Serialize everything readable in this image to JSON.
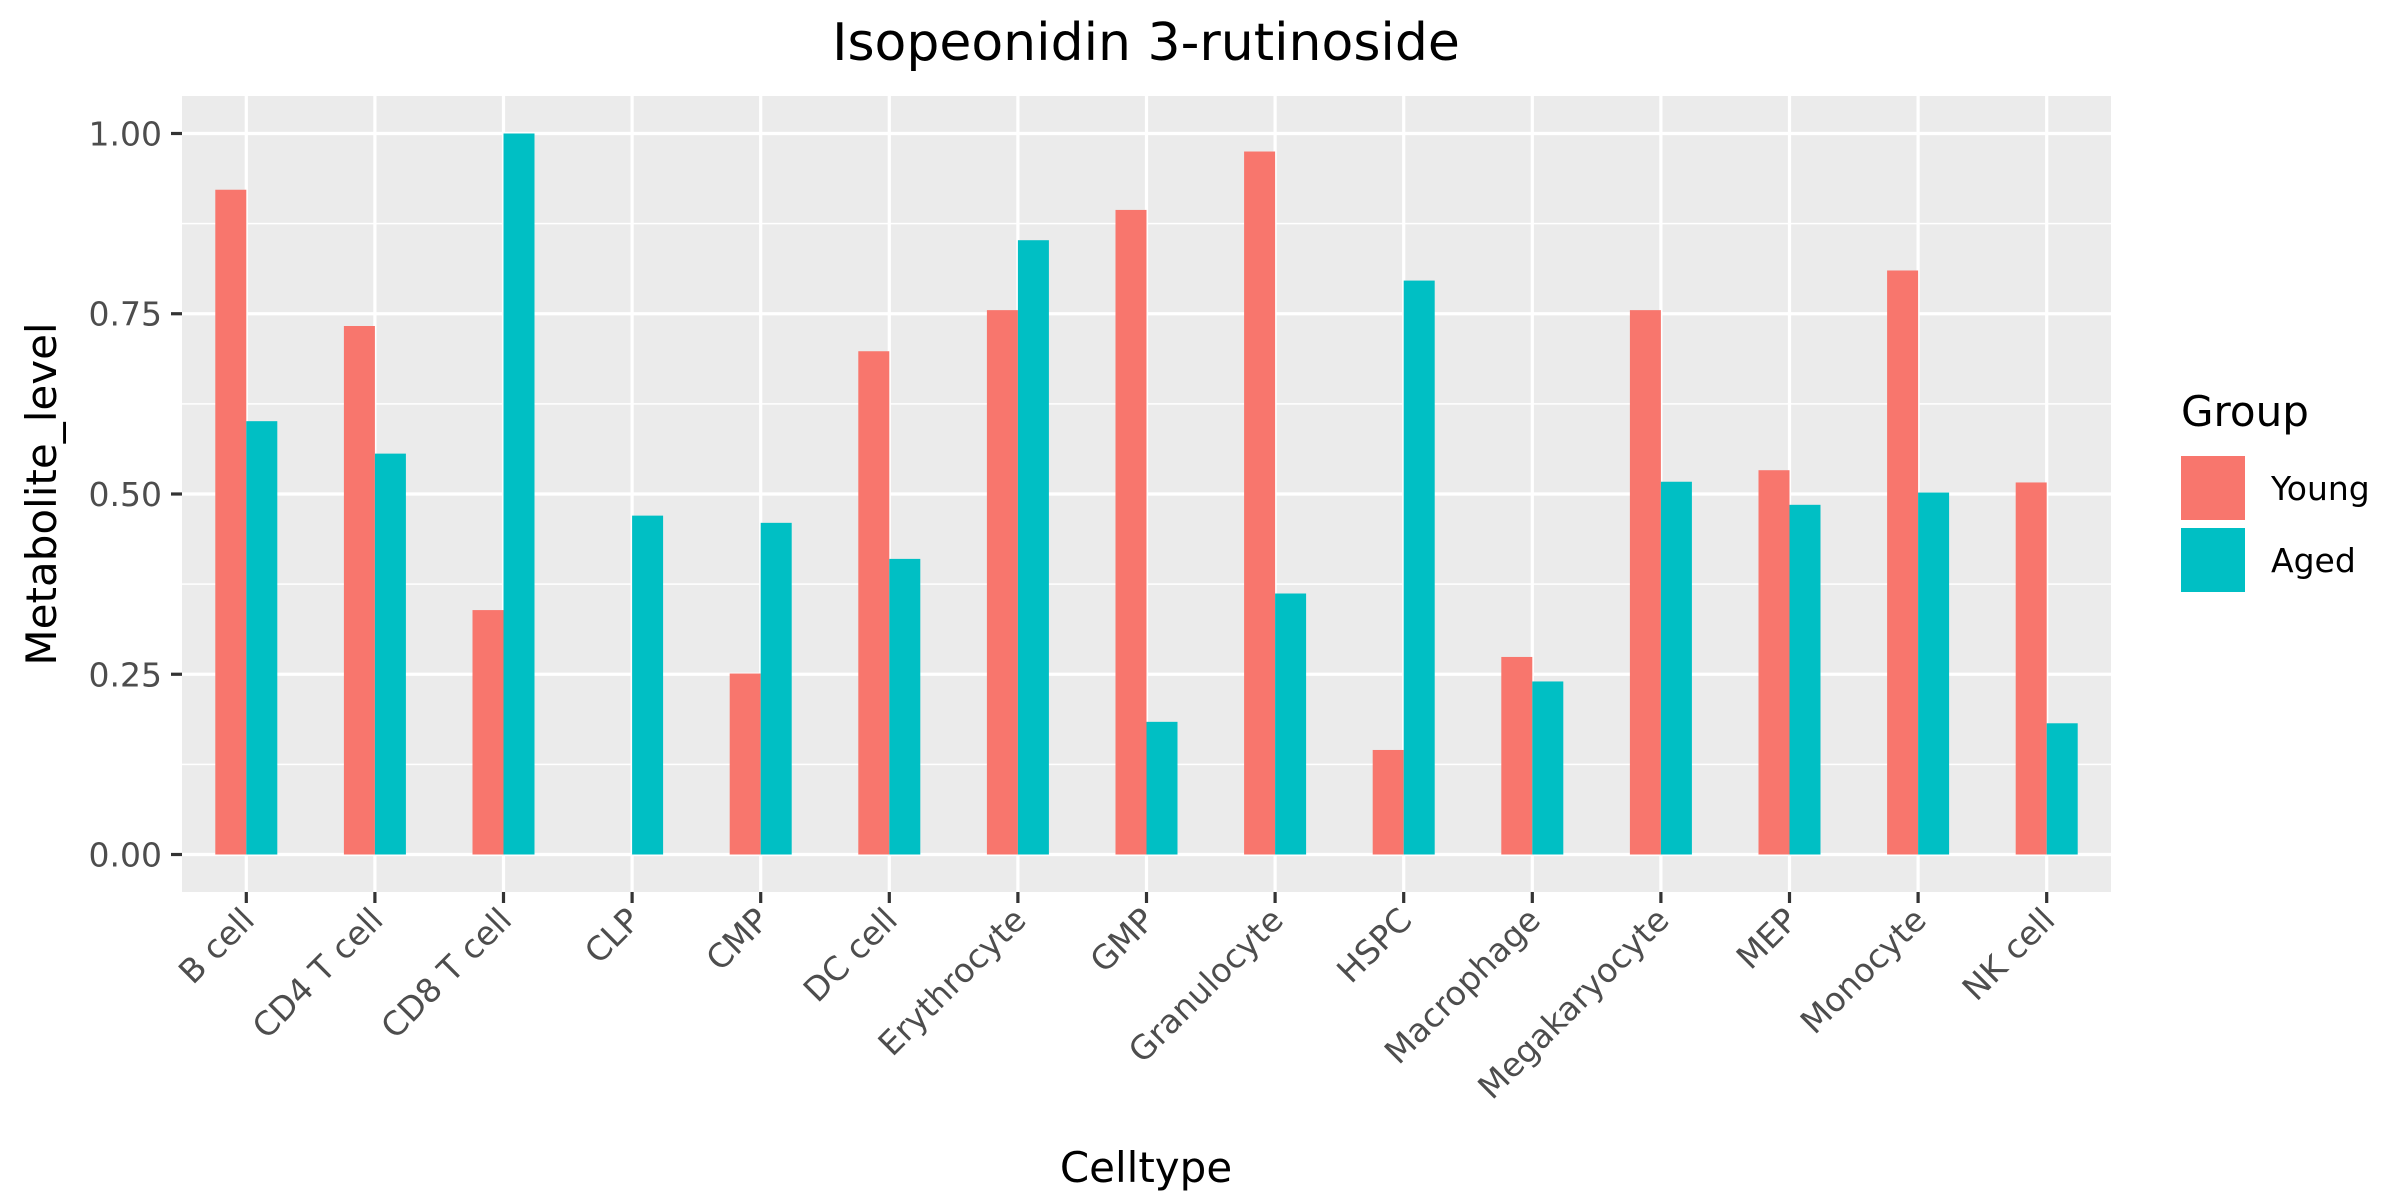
{
  "chart_data": {
    "type": "bar",
    "title": "Isopeonidin 3-rutinoside",
    "xlabel": "Celltype",
    "ylabel": "Metabolite_level",
    "ylim": [
      -0.052,
      1.052
    ],
    "yticks": [
      0.0,
      0.25,
      0.5,
      0.75,
      1.0
    ],
    "ytick_labels": [
      "0.00",
      "0.25",
      "0.50",
      "0.75",
      "1.00"
    ],
    "grid": true,
    "legend": {
      "title": "Group",
      "position": "right"
    },
    "categories": [
      "B cell",
      "CD4 T cell",
      "CD8 T cell",
      "CLP",
      "CMP",
      "DC cell",
      "Erythrocyte",
      "GMP",
      "Granulocyte",
      "HSPC",
      "Macrophage",
      "Megakaryocyte",
      "MEP",
      "Monocyte",
      "NK cell"
    ],
    "series": [
      {
        "name": "Young",
        "color": "#F8766D",
        "values": [
          0.922,
          0.733,
          0.339,
          0.0,
          0.251,
          0.698,
          0.755,
          0.894,
          0.975,
          0.145,
          0.274,
          0.755,
          0.533,
          0.81,
          0.516
        ]
      },
      {
        "name": "Aged",
        "color": "#00BFC4",
        "values": [
          0.601,
          0.556,
          1.0,
          0.47,
          0.46,
          0.41,
          0.852,
          0.184,
          0.362,
          0.796,
          0.24,
          0.517,
          0.485,
          0.502,
          0.182
        ]
      }
    ]
  }
}
